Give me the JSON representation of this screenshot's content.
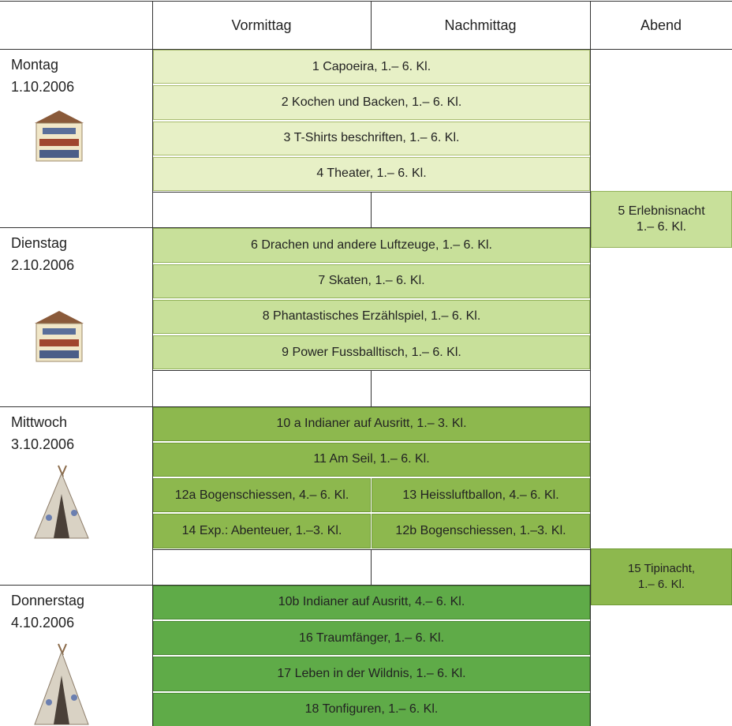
{
  "header": {
    "columns": [
      "Vormittag",
      "Nachmittag",
      "Abend"
    ]
  },
  "days": [
    {
      "name": "Montag",
      "date": "1.10.2006",
      "rows": [
        [
          "1 Capoeira, 1.– 6. Kl."
        ],
        [
          "2 Kochen und Backen, 1.– 6. Kl."
        ],
        [
          "3 T-Shirts beschriften, 1.– 6. Kl."
        ],
        [
          "4 Theater, 1.– 6. Kl."
        ]
      ]
    },
    {
      "name": "Dienstag",
      "date": "2.10.2006",
      "rows": [
        [
          "6 Drachen und andere Luftzeuge, 1.– 6. Kl."
        ],
        [
          "7 Skaten, 1.– 6. Kl."
        ],
        [
          "8 Phantastisches Erzählspiel, 1.– 6. Kl."
        ],
        [
          "9 Power Fussballtisch, 1.– 6. Kl."
        ]
      ]
    },
    {
      "name": "Mittwoch",
      "date": "3.10.2006",
      "rows": [
        [
          "10 a Indianer auf Ausritt, 1.– 3. Kl."
        ],
        [
          "11 Am Seil, 1.– 6. Kl."
        ],
        [
          "12a Bogenschiessen, 4.– 6. Kl.",
          "13 Heissluftballon, 4.– 6. Kl."
        ],
        [
          "14 Exp.: Abenteuer, 1.–3. Kl.",
          "12b Bogenschiessen, 1.–3. Kl."
        ]
      ]
    },
    {
      "name": "Donnerstag",
      "date": "4.10.2006",
      "rows": [
        [
          "10b Indianer auf Ausritt, 4.– 6. Kl."
        ],
        [
          "16 Traumfänger, 1.– 6. Kl."
        ],
        [
          "17 Leben in der Wildnis, 1.– 6. Kl."
        ],
        [
          "18 Tonfiguren, 1.– 6. Kl."
        ]
      ]
    }
  ],
  "evening": [
    {
      "lines": [
        "5 Erlebnisnacht",
        "1.– 6. Kl."
      ]
    },
    {
      "lines": [
        "15 Tipinacht,",
        "1.– 6. Kl."
      ]
    }
  ]
}
